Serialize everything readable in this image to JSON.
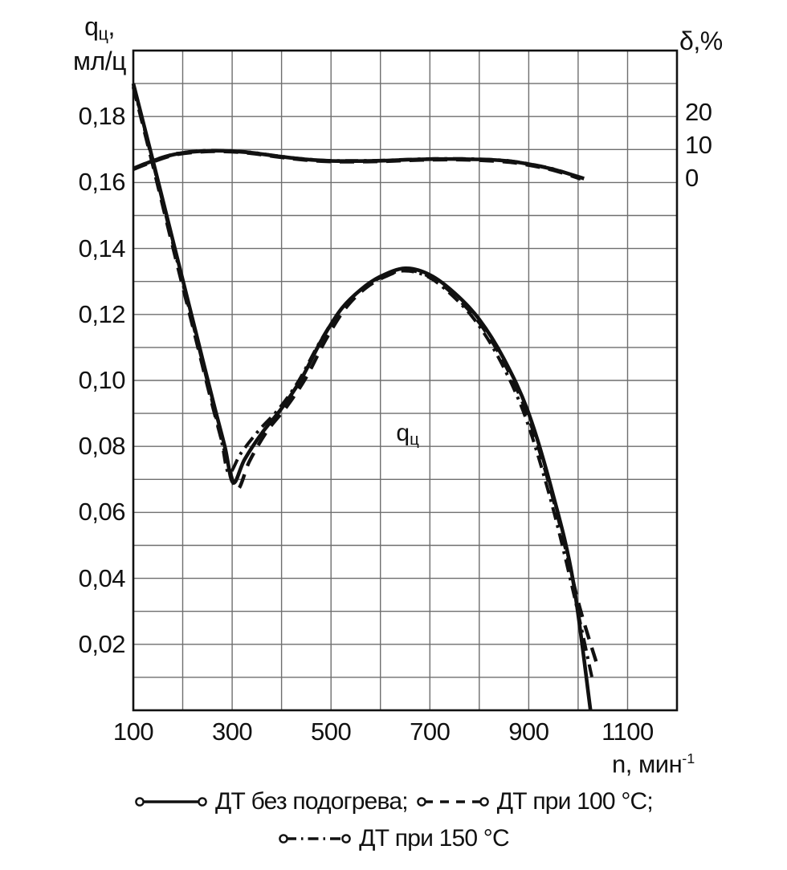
{
  "chart_data": {
    "type": "line",
    "x_axis": {
      "title_main": "n, мин",
      "title_sup": "-1",
      "min": 100,
      "max": 1200,
      "grid_step": 100,
      "ticks": [
        {
          "value": 100,
          "label": "100"
        },
        {
          "value": 300,
          "label": "300"
        },
        {
          "value": 500,
          "label": "500"
        },
        {
          "value": 700,
          "label": "700"
        },
        {
          "value": 900,
          "label": "900"
        },
        {
          "value": 1100,
          "label": "1100"
        }
      ]
    },
    "y_axis_left": {
      "title_q": "q",
      "title_sub": "ц",
      "title_comma": ",",
      "title_line2": "мл/ц",
      "min": 0,
      "max": 0.2,
      "grid_step": 0.01,
      "ticks": [
        {
          "value": 0.18,
          "label": "0,18"
        },
        {
          "value": 0.16,
          "label": "0,16"
        },
        {
          "value": 0.14,
          "label": "0,14"
        },
        {
          "value": 0.12,
          "label": "0,12"
        },
        {
          "value": 0.1,
          "label": "0,10"
        },
        {
          "value": 0.08,
          "label": "0,08"
        },
        {
          "value": 0.06,
          "label": "0,06"
        },
        {
          "value": 0.04,
          "label": "0,04"
        },
        {
          "value": 0.02,
          "label": "0,02"
        }
      ]
    },
    "y_axis_right": {
      "title": "δ,%",
      "zero_at_left_value": 0.16,
      "left_units_per_percent": 0.001,
      "ticks": [
        {
          "value": 20,
          "label": "20"
        },
        {
          "value": 10,
          "label": "10"
        },
        {
          "value": 0,
          "label": "0"
        }
      ]
    },
    "annotation": {
      "n": 655,
      "q": 0.084,
      "text_main": "q",
      "text_sub": "ц"
    },
    "colors": {
      "curve": "#111111",
      "grid": "#6e6e6e",
      "border": "#111111",
      "background": "#ffffff"
    },
    "series": [
      {
        "name": "ДТ при 150 °C",
        "style": "dashdot",
        "quantity": "qc",
        "points": [
          [
            100,
            0.1895
          ],
          [
            140,
            0.1658
          ],
          [
            180,
            0.1415
          ],
          [
            220,
            0.1175
          ],
          [
            255,
            0.0965
          ],
          [
            278,
            0.082
          ],
          [
            293,
            0.072
          ],
          [
            318,
            0.078
          ],
          [
            355,
            0.085
          ],
          [
            395,
            0.0915
          ],
          [
            435,
            0.1
          ],
          [
            475,
            0.111
          ],
          [
            515,
            0.1205
          ],
          [
            555,
            0.1268
          ],
          [
            595,
            0.1308
          ],
          [
            645,
            0.1332
          ],
          [
            695,
            0.1315
          ],
          [
            745,
            0.1258
          ],
          [
            795,
            0.1175
          ],
          [
            845,
            0.1052
          ],
          [
            895,
            0.0882
          ],
          [
            945,
            0.0635
          ],
          [
            990,
            0.036
          ],
          [
            1028,
            0.01
          ]
        ]
      },
      {
        "name": "ДТ при 100 °C",
        "style": "dashed",
        "quantity": "qc",
        "points": [
          [
            100,
            0.189
          ],
          [
            140,
            0.165
          ],
          [
            180,
            0.1405
          ],
          [
            220,
            0.1165
          ],
          [
            260,
            0.0925
          ],
          [
            288,
            0.077
          ],
          [
            310,
            0.067
          ],
          [
            335,
            0.0755
          ],
          [
            370,
            0.0845
          ],
          [
            410,
            0.092
          ],
          [
            450,
            0.101
          ],
          [
            490,
            0.1125
          ],
          [
            530,
            0.122
          ],
          [
            570,
            0.128
          ],
          [
            610,
            0.1315
          ],
          [
            655,
            0.1335
          ],
          [
            705,
            0.131
          ],
          [
            755,
            0.125
          ],
          [
            805,
            0.1165
          ],
          [
            855,
            0.104
          ],
          [
            905,
            0.0865
          ],
          [
            955,
            0.061
          ],
          [
            1000,
            0.033
          ],
          [
            1038,
            0.014
          ]
        ]
      },
      {
        "name": "ДТ без подогрева",
        "style": "solid",
        "quantity": "qc",
        "points": [
          [
            100,
            0.19
          ],
          [
            140,
            0.1665
          ],
          [
            180,
            0.1425
          ],
          [
            220,
            0.1185
          ],
          [
            260,
            0.0945
          ],
          [
            285,
            0.08
          ],
          [
            302,
            0.069
          ],
          [
            325,
            0.076
          ],
          [
            360,
            0.084
          ],
          [
            400,
            0.0915
          ],
          [
            440,
            0.1005
          ],
          [
            480,
            0.112
          ],
          [
            520,
            0.1215
          ],
          [
            560,
            0.1275
          ],
          [
            600,
            0.1315
          ],
          [
            650,
            0.134
          ],
          [
            700,
            0.132
          ],
          [
            750,
            0.1265
          ],
          [
            800,
            0.1185
          ],
          [
            850,
            0.1065
          ],
          [
            900,
            0.09
          ],
          [
            950,
            0.065
          ],
          [
            990,
            0.039
          ],
          [
            1025,
            0.0
          ]
        ]
      },
      {
        "name": "ДТ при 150 °C",
        "style": "dashdot",
        "quantity": "delta",
        "points": [
          [
            100,
            4.3
          ],
          [
            140,
            6.7
          ],
          [
            185,
            8.7
          ],
          [
            235,
            9.6
          ],
          [
            285,
            9.7
          ],
          [
            335,
            9.2
          ],
          [
            385,
            8.2
          ],
          [
            435,
            7.3
          ],
          [
            490,
            6.7
          ],
          [
            545,
            6.6
          ],
          [
            600,
            6.7
          ],
          [
            655,
            7.0
          ],
          [
            710,
            7.2
          ],
          [
            765,
            7.2
          ],
          [
            820,
            7.0
          ],
          [
            865,
            6.5
          ],
          [
            910,
            5.4
          ],
          [
            955,
            3.9
          ],
          [
            1008,
            1.3
          ]
        ]
      },
      {
        "name": "ДТ при 100 °C",
        "style": "dashed",
        "quantity": "delta",
        "points": [
          [
            100,
            4.0
          ],
          [
            140,
            6.3
          ],
          [
            185,
            8.4
          ],
          [
            235,
            9.3
          ],
          [
            285,
            9.4
          ],
          [
            335,
            8.9
          ],
          [
            385,
            7.9
          ],
          [
            435,
            7.0
          ],
          [
            490,
            6.4
          ],
          [
            545,
            6.3
          ],
          [
            600,
            6.4
          ],
          [
            655,
            6.7
          ],
          [
            710,
            6.9
          ],
          [
            765,
            6.9
          ],
          [
            820,
            6.6
          ],
          [
            865,
            6.1
          ],
          [
            910,
            5.0
          ],
          [
            955,
            3.5
          ],
          [
            1005,
            1.1
          ]
        ]
      },
      {
        "name": "ДТ без подогрева",
        "style": "solid",
        "quantity": "delta",
        "points": [
          [
            100,
            4.2
          ],
          [
            140,
            6.6
          ],
          [
            185,
            8.6
          ],
          [
            235,
            9.5
          ],
          [
            285,
            9.6
          ],
          [
            335,
            9.1
          ],
          [
            385,
            8.1
          ],
          [
            435,
            7.2
          ],
          [
            490,
            6.6
          ],
          [
            545,
            6.5
          ],
          [
            600,
            6.6
          ],
          [
            655,
            6.9
          ],
          [
            710,
            7.1
          ],
          [
            765,
            7.1
          ],
          [
            820,
            6.9
          ],
          [
            865,
            6.4
          ],
          [
            910,
            5.3
          ],
          [
            955,
            3.8
          ],
          [
            1012,
            1.2
          ]
        ]
      }
    ]
  },
  "legend": {
    "items": [
      {
        "style": "solid",
        "label": "ДТ без подогрева;"
      },
      {
        "style": "dashed",
        "label": "ДТ при 100 °C;"
      },
      {
        "style": "dashdot",
        "label": "ДТ при 150 °C"
      }
    ]
  }
}
